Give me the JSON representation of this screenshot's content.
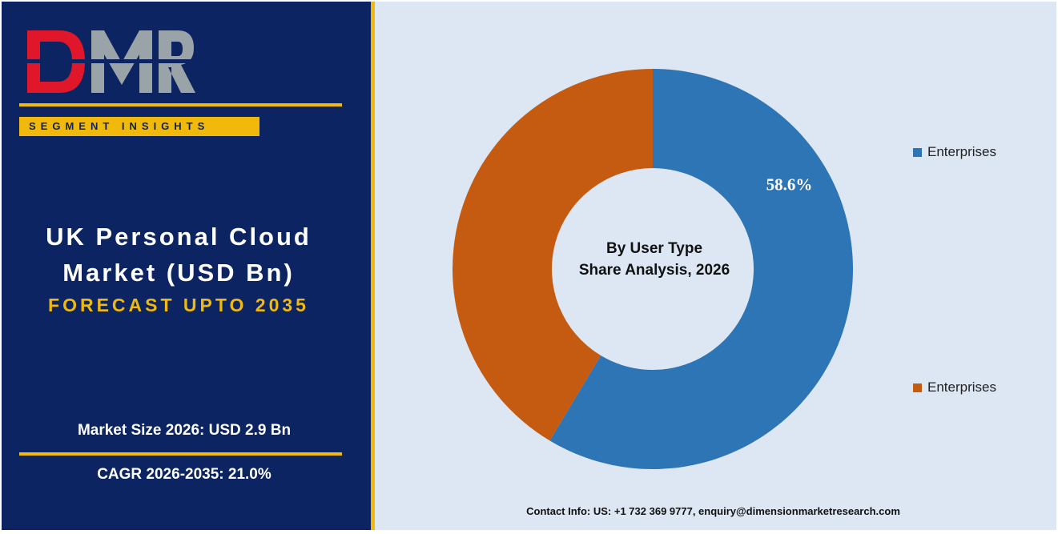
{
  "brand": {
    "logo_text": "DMR",
    "badge": "SEGMENT INSIGHTS"
  },
  "report": {
    "title_line1": "UK Personal Cloud",
    "title_line2": "Market (USD Bn)",
    "forecast": "FORECAST UPTO 2035",
    "market_size": "Market Size 2026: USD 2.9 Bn",
    "cagr": "CAGR 2026-2035: 21.0%"
  },
  "chart_data": {
    "type": "pie",
    "subtype": "donut",
    "center_label_line1": "By User Type",
    "center_label_line2": "Share Analysis, 2026",
    "slices": [
      {
        "name": "Enterprises",
        "value": 58.6,
        "color": "#2e75b6",
        "label": "58.6%"
      },
      {
        "name": "Enterprises",
        "value": 41.4,
        "color": "#c55a11",
        "label": ""
      }
    ],
    "legend_position": "right"
  },
  "footer": {
    "contact": "Contact Info: US: +1 732 369 9777, enquiry@dimensionmarketresearch.com"
  },
  "colors": {
    "navy": "#0c2461",
    "gold": "#f0b90b",
    "panel_bg": "#dde7f4"
  }
}
